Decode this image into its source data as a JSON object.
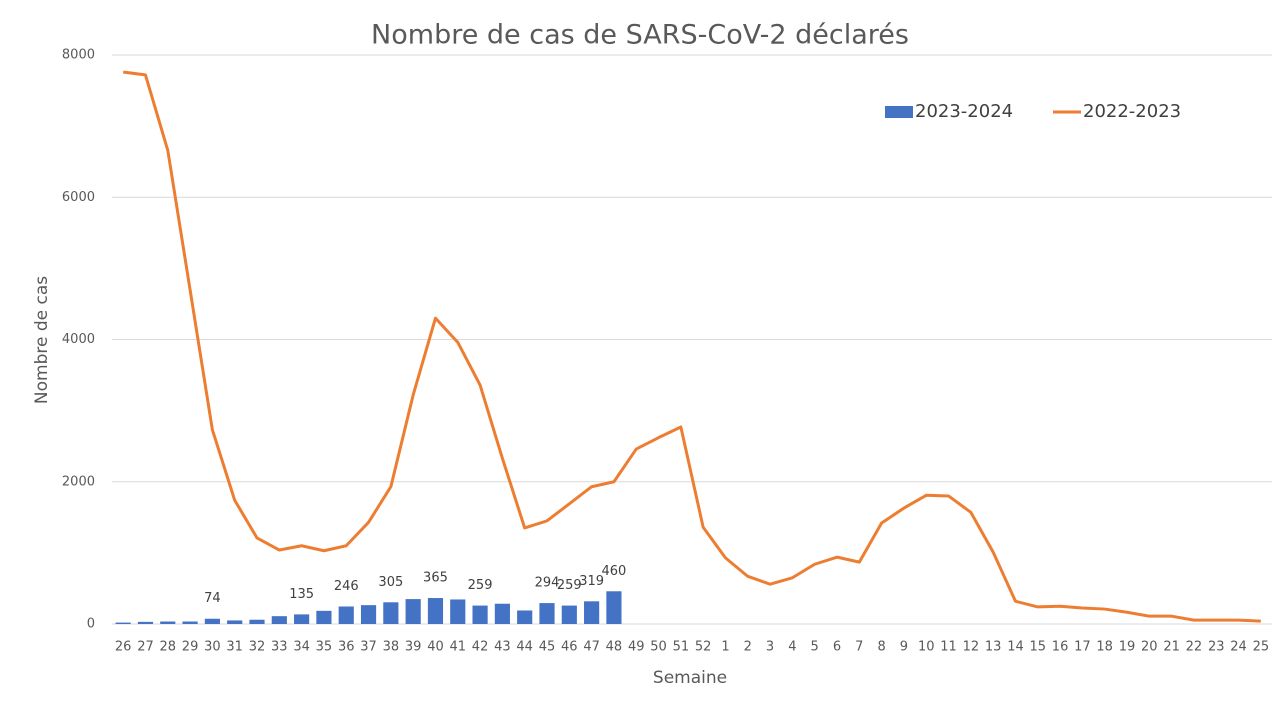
{
  "chart_data": {
    "type": "bar_line",
    "title": "Nombre de cas de SARS-CoV-2 déclarés",
    "xlabel": "Semaine",
    "ylabel": "Nombre de cas",
    "categories": [
      "26",
      "27",
      "28",
      "29",
      "30",
      "31",
      "32",
      "33",
      "34",
      "35",
      "36",
      "37",
      "38",
      "39",
      "40",
      "41",
      "42",
      "43",
      "44",
      "45",
      "46",
      "47",
      "48",
      "49",
      "50",
      "51",
      "52",
      "1",
      "2",
      "3",
      "4",
      "5",
      "6",
      "7",
      "8",
      "9",
      "10",
      "11",
      "12",
      "13",
      "14",
      "15",
      "16",
      "17",
      "18",
      "19",
      "20",
      "21",
      "22",
      "23",
      "24",
      "25"
    ],
    "series": [
      {
        "name": "2023-2024",
        "type": "bar",
        "color": "#4472c4",
        "values": [
          20,
          30,
          35,
          35,
          74,
          50,
          60,
          110,
          135,
          185,
          246,
          265,
          305,
          350,
          365,
          345,
          259,
          285,
          190,
          294,
          259,
          319,
          460,
          null,
          null,
          null,
          null,
          null,
          null,
          null,
          null,
          null,
          null,
          null,
          null,
          null,
          null,
          null,
          null,
          null,
          null,
          null,
          null,
          null,
          null,
          null,
          null,
          null,
          null,
          null,
          null,
          null
        ],
        "value_labels": [
          null,
          null,
          null,
          null,
          "74",
          null,
          null,
          null,
          "135",
          null,
          "246",
          null,
          "305",
          null,
          "365",
          null,
          "259",
          null,
          null,
          "294",
          "259",
          "319",
          "460",
          null,
          null,
          null,
          null,
          null,
          null,
          null,
          null,
          null,
          null,
          null,
          null,
          null,
          null,
          null,
          null,
          null,
          null,
          null,
          null,
          null,
          null,
          null,
          null,
          null,
          null,
          null,
          null,
          null
        ]
      },
      {
        "name": "2022-2023",
        "type": "line",
        "color": "#ed7d31",
        "values": [
          7760,
          7720,
          6660,
          4700,
          2730,
          1740,
          1210,
          1040,
          1100,
          1030,
          1100,
          1430,
          1930,
          3220,
          4300,
          3960,
          3360,
          2330,
          1350,
          1450,
          1690,
          1930,
          2000,
          2460,
          2620,
          2770,
          1360,
          930,
          670,
          560,
          650,
          840,
          940,
          870,
          1420,
          1630,
          1810,
          1800,
          1570,
          1010,
          320,
          240,
          250,
          225,
          210,
          165,
          110,
          110,
          55,
          55,
          55,
          40
        ]
      }
    ],
    "ylim": [
      0,
      8000
    ],
    "yticks": [
      0,
      2000,
      4000,
      6000,
      8000
    ],
    "grid": true,
    "legend": "top-right"
  }
}
